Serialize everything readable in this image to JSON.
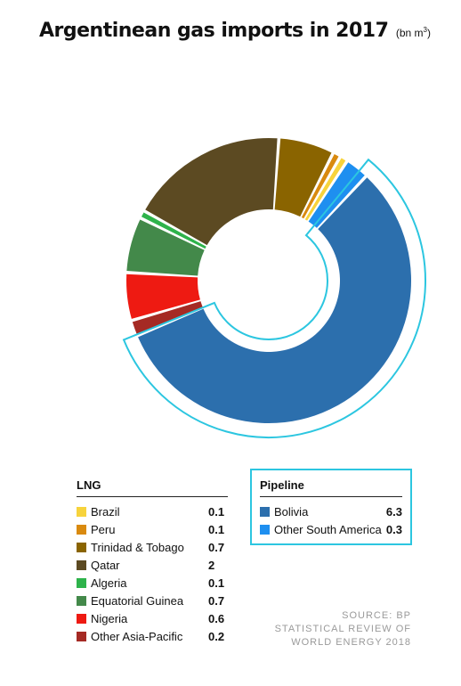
{
  "title": {
    "main": "Argentinean gas imports in 2017",
    "unit": "(bn m",
    "unit_sup": "3",
    "unit_close": ")"
  },
  "colors": {
    "highlight": "#2cc6e0"
  },
  "chart_data": {
    "type": "pie",
    "title": "Argentinean gas imports in 2017",
    "unit": "bn m3",
    "slices": [
      {
        "label": "Bolivia",
        "group": "Pipeline",
        "value": 6.3,
        "color": "#2c6fad"
      },
      {
        "label": "Other Asia-Pacific",
        "group": "LNG",
        "value": 0.2,
        "color": "#a52a24"
      },
      {
        "label": "Nigeria",
        "group": "LNG",
        "value": 0.6,
        "color": "#ee1a12"
      },
      {
        "label": "Equatorial Guinea",
        "group": "LNG",
        "value": 0.7,
        "color": "#43894a"
      },
      {
        "label": "Algeria",
        "group": "LNG",
        "value": 0.1,
        "color": "#2eb34b"
      },
      {
        "label": "Qatar",
        "group": "LNG",
        "value": 2,
        "color": "#5c4a22"
      },
      {
        "label": "Trinidad & Tobago",
        "group": "LNG",
        "value": 0.7,
        "color": "#8a6400"
      },
      {
        "label": "Peru",
        "group": "LNG",
        "value": 0.1,
        "color": "#d98a0f"
      },
      {
        "label": "Brazil",
        "group": "LNG",
        "value": 0.1,
        "color": "#f7d33c"
      },
      {
        "label": "Other South America",
        "group": "Pipeline",
        "value": 0.3,
        "color": "#1e8ff0"
      }
    ]
  },
  "legend": {
    "lng": {
      "heading": "LNG",
      "items": [
        {
          "label": "Brazil",
          "value": "0.1",
          "color": "#f7d33c"
        },
        {
          "label": "Peru",
          "value": "0.1",
          "color": "#d98a0f"
        },
        {
          "label": "Trinidad & Tobago",
          "value": "0.7",
          "color": "#8a6400"
        },
        {
          "label": "Qatar",
          "value": "2",
          "color": "#5c4a22"
        },
        {
          "label": "Algeria",
          "value": "0.1",
          "color": "#2eb34b"
        },
        {
          "label": "Equatorial Guinea",
          "value": "0.7",
          "color": "#43894a"
        },
        {
          "label": "Nigeria",
          "value": "0.6",
          "color": "#ee1a12"
        },
        {
          "label": "Other Asia-Pacific",
          "value": "0.2",
          "color": "#a52a24"
        }
      ]
    },
    "pipeline": {
      "heading": "Pipeline",
      "items": [
        {
          "label": "Bolivia",
          "value": "6.3",
          "color": "#2c6fad"
        },
        {
          "label": "Other South America",
          "value": "0.3",
          "color": "#1e8ff0"
        }
      ]
    }
  },
  "source": {
    "line1": "SOURCE: BP",
    "line2": "STATISTICAL REVIEW OF",
    "line3": "WORLD ENERGY 2018"
  }
}
